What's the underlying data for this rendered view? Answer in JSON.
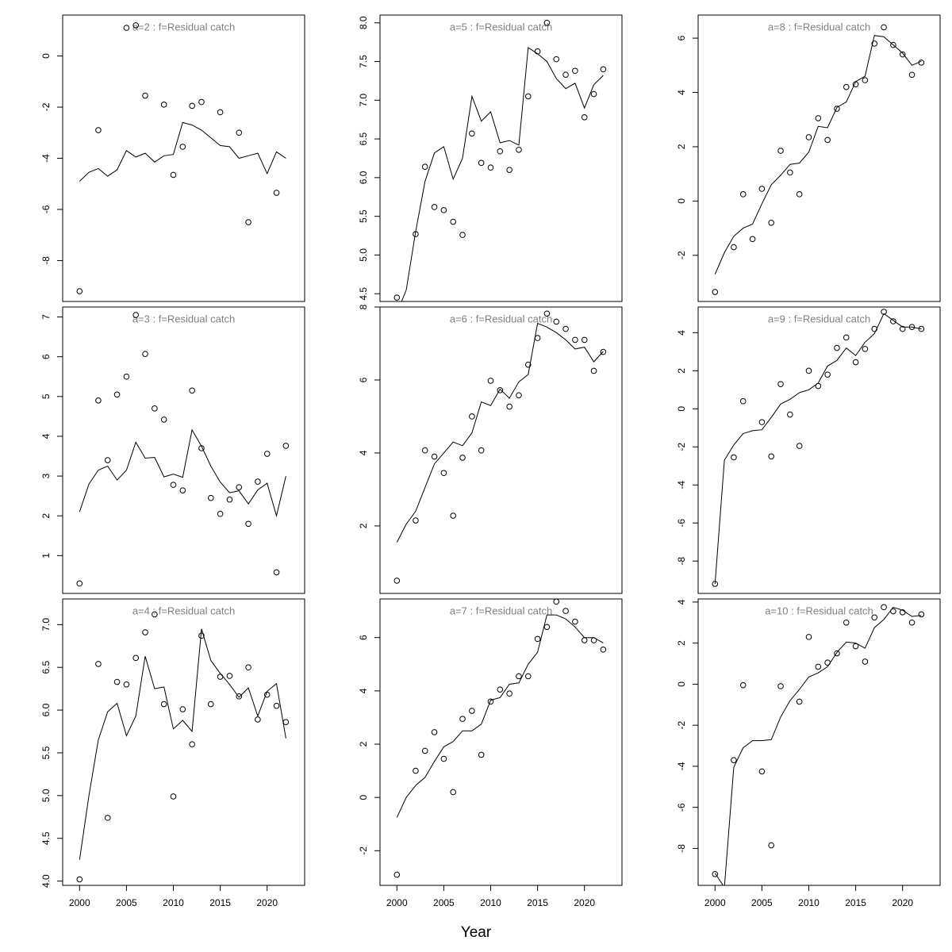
{
  "figure": {
    "xlabel": "Year",
    "colors": {
      "title": "#808080",
      "line": "#000000",
      "points": "#000000"
    }
  },
  "chart_data": [
    {
      "type": "line",
      "title": "a=2  :  f=Residual catch",
      "x": [
        2000,
        2001,
        2002,
        2003,
        2004,
        2005,
        2006,
        2007,
        2008,
        2009,
        2010,
        2011,
        2012,
        2013,
        2014,
        2015,
        2016,
        2017,
        2018,
        2019,
        2020,
        2021,
        2022
      ],
      "series": [
        {
          "kind": "line",
          "values": [
            -4.9,
            -4.55,
            -4.4,
            -4.7,
            -4.45,
            -3.7,
            -3.95,
            -3.8,
            -4.15,
            -3.9,
            -3.85,
            -2.6,
            -2.7,
            -2.9,
            -3.2,
            -3.5,
            -3.55,
            -4.0,
            -3.9,
            -3.8,
            -4.6,
            -3.75,
            -4.0
          ]
        },
        {
          "kind": "points",
          "values": [
            -9.2,
            null,
            -2.9,
            null,
            null,
            1.1,
            1.2,
            -1.55,
            null,
            -1.9,
            -4.65,
            -3.55,
            -1.95,
            -1.8,
            null,
            -2.2,
            null,
            -3.0,
            -6.5,
            null,
            null,
            -5.35,
            null
          ]
        }
      ],
      "xlim": [
        1998.2,
        2024.0
      ],
      "ylim": [
        -9.6,
        1.6
      ],
      "yticks": [
        -8,
        -6,
        -4,
        -2,
        0
      ]
    },
    {
      "type": "line",
      "title": "a=5  :  f=Residual catch",
      "x": [
        2000,
        2001,
        2002,
        2003,
        2004,
        2005,
        2006,
        2007,
        2008,
        2009,
        2010,
        2011,
        2012,
        2013,
        2014,
        2015,
        2016,
        2017,
        2018,
        2019,
        2020,
        2021,
        2022
      ],
      "series": [
        {
          "kind": "line",
          "values": [
            4.25,
            4.55,
            5.3,
            5.95,
            6.32,
            6.4,
            5.98,
            6.25,
            7.05,
            6.73,
            6.85,
            6.45,
            6.48,
            6.42,
            7.68,
            7.6,
            7.5,
            7.28,
            7.15,
            7.22,
            6.9,
            7.2,
            7.32
          ]
        },
        {
          "kind": "points",
          "values": [
            4.45,
            null,
            5.27,
            6.14,
            5.62,
            5.58,
            5.43,
            5.26,
            6.57,
            6.19,
            6.13,
            6.34,
            6.1,
            6.36,
            7.05,
            7.63,
            8.0,
            7.53,
            7.33,
            7.38,
            6.78,
            7.08,
            7.4
          ]
        }
      ],
      "xlim": [
        1998.2,
        2024.0
      ],
      "ylim": [
        4.4,
        8.1
      ],
      "yticks": [
        4.5,
        5.0,
        5.5,
        6.0,
        6.5,
        7.0,
        7.5,
        8.0
      ]
    },
    {
      "type": "line",
      "title": "a=8  :  f=Residual catch",
      "x": [
        2000,
        2001,
        2002,
        2003,
        2004,
        2005,
        2006,
        2007,
        2008,
        2009,
        2010,
        2011,
        2012,
        2013,
        2014,
        2015,
        2016,
        2017,
        2018,
        2019,
        2020,
        2021,
        2022
      ],
      "series": [
        {
          "kind": "line",
          "values": [
            -2.7,
            -1.9,
            -1.3,
            -1.0,
            -0.85,
            -0.1,
            0.6,
            0.95,
            1.35,
            1.4,
            1.8,
            2.75,
            2.7,
            3.45,
            3.65,
            4.4,
            4.6,
            6.1,
            6.05,
            5.75,
            5.45,
            5.0,
            5.15
          ]
        },
        {
          "kind": "points",
          "values": [
            -3.35,
            null,
            -1.7,
            0.25,
            -1.4,
            0.45,
            -0.8,
            1.85,
            1.05,
            0.25,
            2.35,
            3.05,
            2.25,
            3.4,
            4.2,
            4.3,
            4.45,
            5.8,
            6.4,
            5.75,
            5.4,
            4.65,
            5.1
          ]
        }
      ],
      "xlim": [
        1998.2,
        2024.0
      ],
      "ylim": [
        -3.7,
        6.85
      ],
      "yticks": [
        -2,
        0,
        2,
        4,
        6
      ]
    },
    {
      "type": "line",
      "title": "a=3  :  f=Residual catch",
      "x": [
        2000,
        2001,
        2002,
        2003,
        2004,
        2005,
        2006,
        2007,
        2008,
        2009,
        2010,
        2011,
        2012,
        2013,
        2014,
        2015,
        2016,
        2017,
        2018,
        2019,
        2020,
        2021,
        2022
      ],
      "series": [
        {
          "kind": "line",
          "values": [
            2.1,
            2.8,
            3.15,
            3.25,
            2.9,
            3.15,
            3.85,
            3.45,
            3.47,
            2.98,
            3.05,
            2.97,
            4.16,
            3.75,
            3.25,
            2.85,
            2.58,
            2.63,
            2.3,
            2.65,
            2.82,
            2.0,
            3.0
          ]
        },
        {
          "kind": "points",
          "values": [
            0.3,
            null,
            4.9,
            3.4,
            5.05,
            5.5,
            7.05,
            6.07,
            4.7,
            4.42,
            2.78,
            2.64,
            5.15,
            3.7,
            2.45,
            2.05,
            2.41,
            2.72,
            1.8,
            2.86,
            3.56,
            0.58,
            3.76
          ]
        }
      ],
      "xlim": [
        1998.2,
        2024.0
      ],
      "ylim": [
        0.05,
        7.25
      ],
      "yticks": [
        1,
        2,
        3,
        4,
        5,
        6,
        7
      ]
    },
    {
      "type": "line",
      "title": "a=6  :  f=Residual catch",
      "x": [
        2000,
        2001,
        2002,
        2003,
        2004,
        2005,
        2006,
        2007,
        2008,
        2009,
        2010,
        2011,
        2012,
        2013,
        2014,
        2015,
        2016,
        2017,
        2018,
        2019,
        2020,
        2021,
        2022
      ],
      "series": [
        {
          "kind": "line",
          "values": [
            1.55,
            2.05,
            2.4,
            3.05,
            3.7,
            4.0,
            4.3,
            4.2,
            4.55,
            5.4,
            5.3,
            5.75,
            5.5,
            5.95,
            6.15,
            7.55,
            7.45,
            7.3,
            7.1,
            6.85,
            6.9,
            6.5,
            6.78
          ]
        },
        {
          "kind": "points",
          "values": [
            0.5,
            null,
            2.15,
            4.07,
            3.9,
            3.45,
            2.28,
            3.87,
            5.0,
            4.07,
            5.98,
            5.72,
            5.27,
            5.58,
            6.42,
            7.15,
            7.82,
            7.6,
            7.4,
            7.1,
            7.1,
            6.25,
            6.77
          ]
        }
      ],
      "xlim": [
        1998.2,
        2024.0
      ],
      "ylim": [
        0.15,
        8.0
      ],
      "yticks": [
        2,
        4,
        6,
        8
      ]
    },
    {
      "type": "line",
      "title": "a=9  :  f=Residual catch",
      "x": [
        2000,
        2001,
        2002,
        2003,
        2004,
        2005,
        2006,
        2007,
        2008,
        2009,
        2010,
        2011,
        2012,
        2013,
        2014,
        2015,
        2016,
        2017,
        2018,
        2019,
        2020,
        2021,
        2022
      ],
      "series": [
        {
          "kind": "line",
          "values": [
            -9.2,
            -2.7,
            -1.9,
            -1.3,
            -1.15,
            -1.1,
            -0.45,
            0.25,
            0.5,
            0.85,
            1.0,
            1.35,
            2.25,
            2.55,
            3.2,
            2.8,
            3.5,
            3.95,
            5.0,
            4.65,
            4.3,
            4.3,
            4.2
          ]
        },
        {
          "kind": "points",
          "values": [
            -9.2,
            null,
            -2.55,
            0.4,
            null,
            -0.7,
            -2.5,
            1.3,
            -0.3,
            -1.95,
            2.0,
            1.2,
            1.8,
            3.2,
            3.75,
            2.45,
            3.15,
            4.2,
            5.1,
            4.6,
            4.2,
            4.3,
            4.2
          ]
        }
      ],
      "xlim": [
        1998.2,
        2024.0
      ],
      "ylim": [
        -9.7,
        5.35
      ],
      "yticks": [
        -8,
        -6,
        -4,
        -2,
        0,
        2,
        4
      ]
    },
    {
      "type": "line",
      "title": "a=4  :  f=Residual catch",
      "x": [
        2000,
        2001,
        2002,
        2003,
        2004,
        2005,
        2006,
        2007,
        2008,
        2009,
        2010,
        2011,
        2012,
        2013,
        2014,
        2015,
        2016,
        2017,
        2018,
        2019,
        2020,
        2021,
        2022
      ],
      "series": [
        {
          "kind": "line",
          "values": [
            4.25,
            5.0,
            5.65,
            5.98,
            6.08,
            5.7,
            5.93,
            6.63,
            6.25,
            6.27,
            5.78,
            5.88,
            5.75,
            6.95,
            6.58,
            6.43,
            6.3,
            6.15,
            6.26,
            5.93,
            6.22,
            6.31,
            5.67
          ]
        },
        {
          "kind": "points",
          "values": [
            4.02,
            null,
            6.54,
            4.74,
            6.33,
            6.3,
            6.61,
            6.91,
            7.12,
            6.07,
            4.99,
            6.01,
            5.6,
            6.87,
            6.07,
            6.39,
            6.4,
            6.16,
            6.5,
            5.89,
            6.18,
            6.05,
            5.86
          ]
        }
      ],
      "xlim": [
        1998.2,
        2024.0
      ],
      "ylim": [
        3.95,
        7.3
      ],
      "yticks": [
        4.0,
        4.5,
        5.0,
        5.5,
        6.0,
        6.5,
        7.0
      ]
    },
    {
      "type": "line",
      "title": "a=7  :  f=Residual catch",
      "x": [
        2000,
        2001,
        2002,
        2003,
        2004,
        2005,
        2006,
        2007,
        2008,
        2009,
        2010,
        2011,
        2012,
        2013,
        2014,
        2015,
        2016,
        2017,
        2018,
        2019,
        2020,
        2021,
        2022
      ],
      "series": [
        {
          "kind": "line",
          "values": [
            -0.75,
            0.0,
            0.45,
            0.75,
            1.35,
            1.9,
            2.1,
            2.5,
            2.5,
            2.75,
            3.65,
            3.75,
            4.25,
            4.3,
            5.0,
            5.45,
            6.85,
            6.85,
            6.7,
            6.4,
            6.0,
            6.0,
            5.8
          ]
        },
        {
          "kind": "points",
          "values": [
            -2.9,
            null,
            1.0,
            1.75,
            2.45,
            1.45,
            0.2,
            2.95,
            3.25,
            1.6,
            3.6,
            4.05,
            3.9,
            4.55,
            4.55,
            5.95,
            6.4,
            7.35,
            7.0,
            6.6,
            5.9,
            5.9,
            5.55
          ]
        }
      ],
      "xlim": [
        1998.2,
        2024.0
      ],
      "ylim": [
        -3.3,
        7.45
      ],
      "yticks": [
        -2,
        0,
        2,
        4,
        6
      ]
    },
    {
      "type": "line",
      "title": "a=10  :  f=Residual catch",
      "x": [
        2000,
        2001,
        2002,
        2003,
        2004,
        2005,
        2006,
        2007,
        2008,
        2009,
        2010,
        2011,
        2012,
        2013,
        2014,
        2015,
        2016,
        2017,
        2018,
        2019,
        2020,
        2021,
        2022
      ],
      "series": [
        {
          "kind": "line",
          "values": [
            -9.2,
            -9.9,
            -4.05,
            -3.1,
            -2.75,
            -2.75,
            -2.7,
            -1.6,
            -0.8,
            -0.25,
            0.35,
            0.55,
            0.85,
            1.55,
            2.05,
            2.0,
            1.75,
            2.75,
            3.15,
            3.75,
            3.6,
            3.3,
            3.35
          ]
        },
        {
          "kind": "points",
          "values": [
            -9.25,
            null,
            -3.7,
            -0.05,
            null,
            -4.25,
            -7.85,
            -0.1,
            null,
            -0.85,
            2.3,
            0.85,
            1.05,
            1.5,
            3.0,
            1.85,
            1.1,
            3.25,
            3.75,
            3.55,
            3.5,
            3.0,
            3.4
          ]
        }
      ],
      "xlim": [
        1998.2,
        2024.0
      ],
      "ylim": [
        -9.8,
        4.15
      ],
      "yticks": [
        -8,
        -6,
        -4,
        -2,
        0,
        2,
        4
      ]
    }
  ],
  "x_axis": {
    "ticks": [
      2000,
      2005,
      2010,
      2015,
      2020
    ]
  }
}
